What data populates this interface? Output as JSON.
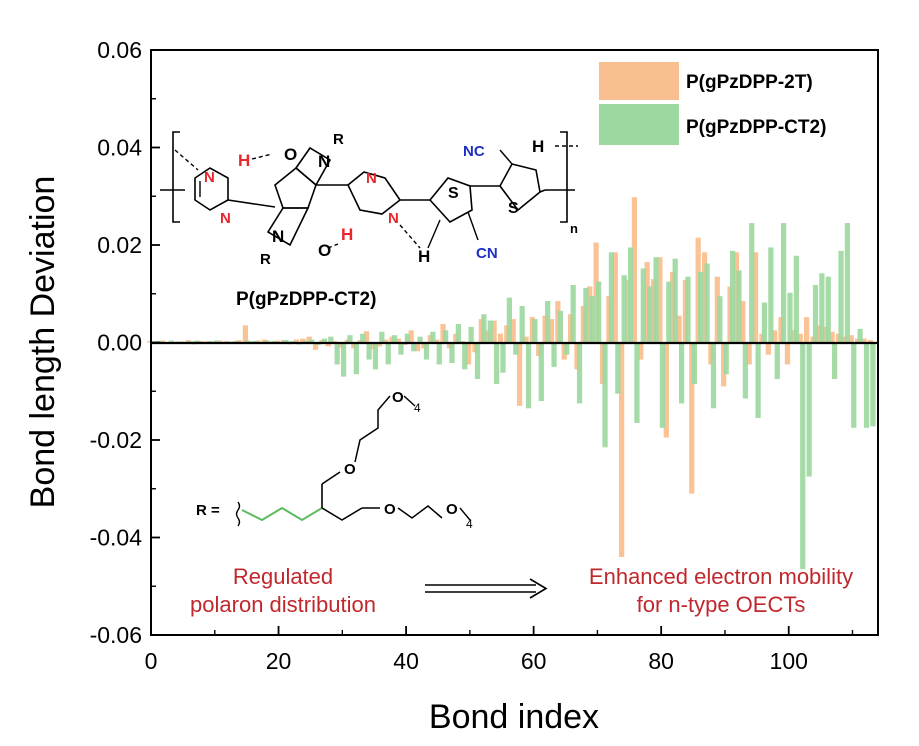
{
  "chart_data": {
    "type": "bar",
    "xlabel": "Bond index",
    "ylabel": "Bond length Deviation",
    "xlim": [
      0,
      114
    ],
    "ylim": [
      -0.06,
      0.06
    ],
    "xticks": [
      "0",
      "20",
      "40",
      "60",
      "80",
      "100"
    ],
    "yticks": [
      "-0.06",
      "-0.04",
      "-0.02",
      "0.00",
      "0.02",
      "0.04",
      "0.06"
    ],
    "legend_position": "top-right",
    "series": [
      {
        "name": "P(gPzDPP-2T)",
        "color": "#f9c08f",
        "x": [
          0,
          1,
          2,
          3,
          4,
          5,
          6,
          7,
          8,
          9,
          10,
          11,
          12,
          13,
          14,
          15,
          16,
          17,
          18,
          19,
          20,
          21,
          22,
          23,
          24,
          25,
          26,
          27,
          28,
          29,
          30,
          31,
          32,
          33,
          34,
          35,
          36,
          37,
          38,
          39,
          40,
          41,
          42,
          43,
          44,
          45,
          46,
          47,
          48,
          49,
          50,
          51,
          52,
          53,
          54,
          55,
          56,
          57,
          58,
          59,
          60,
          61,
          62,
          63,
          64,
          65,
          66,
          67,
          68,
          69,
          70,
          71,
          72,
          73,
          74,
          75,
          76,
          77,
          78,
          79,
          80,
          81,
          82,
          83,
          84,
          85,
          86,
          87,
          88,
          89,
          90,
          91,
          92,
          93,
          94,
          95,
          96,
          97,
          98,
          99,
          100,
          101,
          102,
          103,
          104,
          105,
          106,
          107,
          108,
          109,
          110,
          111,
          112,
          113
        ],
        "values": [
          0.0003,
          -0.0002,
          0.0004,
          0.0001,
          -0.0003,
          0.0002,
          0.0005,
          -0.0004,
          0.0003,
          0.0002,
          -0.0002,
          0.0004,
          0.0003,
          -0.0003,
          0.0005,
          0.0035,
          -0.0003,
          0.0004,
          0.0006,
          -0.0002,
          0.0004,
          0.0005,
          -0.0004,
          0.0006,
          0.0008,
          0.0012,
          -0.0015,
          0.0005,
          -0.0008,
          0.0003,
          -0.001,
          0.0006,
          -0.0012,
          0.0005,
          0.0023,
          -0.0014,
          -0.0008,
          0.0006,
          0.0012,
          0.0008,
          -0.0005,
          0.0025,
          -0.0018,
          -0.0012,
          0.0015,
          0.0006,
          0.0038,
          -0.0012,
          0.0018,
          0.0003,
          -0.0045,
          -0.002,
          0.0048,
          0.0025,
          0.0045,
          0.0018,
          0.0035,
          0.0048,
          -0.013,
          0.0012,
          0.0052,
          -0.0028,
          0.0055,
          0.0048,
          0.0085,
          -0.0035,
          0.0058,
          -0.0055,
          0.0075,
          0.0115,
          0.0205,
          -0.0085,
          0.0095,
          0.0185,
          -0.044,
          0.0128,
          0.0298,
          -0.0035,
          0.0165,
          0.013,
          0.0175,
          -0.0195,
          0.0145,
          0.0055,
          0.0128,
          -0.031,
          0.0215,
          0.0185,
          -0.0045,
          0.0135,
          -0.009,
          0.0115,
          0.0185,
          0.0085,
          -0.0045,
          0.0185,
          0.0018,
          -0.0025,
          0.0025,
          0.0052,
          -0.0045,
          0.0025,
          0.0018,
          0.0052,
          0.0012,
          0.0035,
          0.0032,
          0.0022,
          0.0018,
          0.0012,
          0.0015,
          0.0008,
          0.0008,
          0.0005
        ]
      },
      {
        "name": "P(gPzDPP-CT2)",
        "color": "#9dd8a0",
        "x": [
          0,
          1,
          2,
          3,
          4,
          5,
          6,
          7,
          8,
          9,
          10,
          11,
          12,
          13,
          14,
          15,
          16,
          17,
          18,
          19,
          20,
          21,
          22,
          23,
          24,
          25,
          26,
          27,
          28,
          29,
          30,
          31,
          32,
          33,
          34,
          35,
          36,
          37,
          38,
          39,
          40,
          41,
          42,
          43,
          44,
          45,
          46,
          47,
          48,
          49,
          50,
          51,
          52,
          53,
          54,
          55,
          56,
          57,
          58,
          59,
          60,
          61,
          62,
          63,
          64,
          65,
          66,
          67,
          68,
          69,
          70,
          71,
          72,
          73,
          74,
          75,
          76,
          77,
          78,
          79,
          80,
          81,
          82,
          83,
          84,
          85,
          86,
          87,
          88,
          89,
          90,
          91,
          92,
          93,
          94,
          95,
          96,
          97,
          98,
          99,
          100,
          101,
          102,
          103,
          104,
          105,
          106,
          107,
          108,
          109,
          110,
          111,
          112,
          113
        ],
        "values": [
          0.0002,
          0.0003,
          -0.0002,
          0.0004,
          0.0002,
          -0.0003,
          0.0003,
          0.0004,
          -0.0002,
          0.0003,
          0.0004,
          -0.0003,
          0.0002,
          0.0003,
          -0.0002,
          0.0004,
          0.0003,
          -0.0002,
          0.0004,
          0.0003,
          -0.0002,
          0.0005,
          0.0003,
          -0.0004,
          0.0004,
          0.0006,
          -0.0005,
          0.0008,
          0.0012,
          -0.0045,
          -0.007,
          0.0015,
          -0.0065,
          0.0018,
          -0.0035,
          -0.0055,
          0.0022,
          -0.0045,
          0.0015,
          -0.0025,
          0.0018,
          -0.0018,
          0.0012,
          -0.0035,
          0.0022,
          -0.0045,
          0.0025,
          -0.0042,
          0.0038,
          -0.0055,
          0.0032,
          -0.0075,
          0.0058,
          0.0045,
          -0.0085,
          -0.0062,
          0.0092,
          -0.0025,
          0.0075,
          -0.0135,
          0.0048,
          -0.012,
          0.0085,
          -0.005,
          0.0065,
          -0.0025,
          0.0118,
          -0.0125,
          0.0112,
          0.0095,
          0.0125,
          -0.0215,
          0.0185,
          -0.0105,
          0.0138,
          0.0195,
          -0.0165,
          0.0152,
          0.0115,
          0.0175,
          -0.0175,
          0.0125,
          0.0172,
          -0.0125,
          0.0135,
          -0.0085,
          0.0145,
          0.0162,
          -0.0135,
          0.0095,
          -0.0065,
          0.0188,
          0.0148,
          -0.0115,
          0.0245,
          -0.0155,
          0.0082,
          0.0195,
          -0.0075,
          0.0245,
          0.0102,
          0.0178,
          -0.0465,
          -0.0275,
          0.0118,
          0.0142,
          0.0135,
          -0.0075,
          0.0188,
          0.0245,
          -0.0175,
          0.0028,
          -0.0175,
          -0.0172
        ]
      }
    ]
  },
  "structure": {
    "title": "P(gPzDPP-CT2)",
    "r_prefix": "R =",
    "atoms": {
      "N": "N",
      "H": "H",
      "O": "O",
      "R": "R",
      "S": "S",
      "CN": "CN",
      "NC": "NC",
      "n": "n",
      "O_sub": "4"
    }
  },
  "annotations": {
    "left_line1": "Regulated",
    "left_line2": "polaron distribution",
    "right_line1": "Enhanced electron mobility",
    "right_line2": "for n-type OECTs"
  },
  "colors": {
    "heteroatom_red": "#e8262b",
    "cyano_blue": "#1f2ec4",
    "note_red": "#c0282d",
    "side_chain_green": "#5cba60"
  }
}
